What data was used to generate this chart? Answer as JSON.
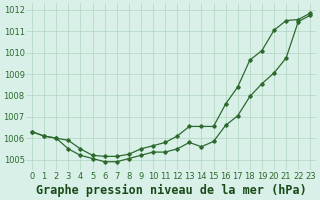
{
  "title": "Graphe pression niveau de la mer (hPa)",
  "xlabel_hours": [
    0,
    1,
    2,
    3,
    4,
    5,
    6,
    7,
    8,
    9,
    10,
    11,
    12,
    13,
    14,
    15,
    16,
    17,
    18,
    19,
    20,
    21,
    22,
    23
  ],
  "line_curved": [
    1006.3,
    1006.1,
    1006.0,
    1005.5,
    1005.2,
    1005.05,
    1004.9,
    1004.9,
    1005.05,
    1005.2,
    1005.35,
    1005.35,
    1005.5,
    1005.8,
    1005.6,
    1005.85,
    1006.6,
    1007.05,
    1007.95,
    1008.55,
    1009.05,
    1009.75,
    1011.45,
    1011.75
  ],
  "line_straight": [
    1006.3,
    1006.1,
    1006.0,
    1005.9,
    1005.5,
    1005.2,
    1005.15,
    1005.15,
    1005.25,
    1005.5,
    1005.65,
    1005.8,
    1006.1,
    1006.55,
    1006.55,
    1006.55,
    1007.6,
    1008.4,
    1009.65,
    1010.1,
    1011.05,
    1011.5,
    1011.55,
    1011.85
  ],
  "line_color": "#2d6a2d",
  "bg_color": "#d8f0e8",
  "grid_color": "#b0d4c0",
  "title_color": "#1a4a1a",
  "ylim": [
    1004.5,
    1012.3
  ],
  "yticks": [
    1005,
    1006,
    1007,
    1008,
    1009,
    1010,
    1011,
    1012
  ],
  "title_fontsize": 8.5,
  "tick_fontsize": 6.0
}
